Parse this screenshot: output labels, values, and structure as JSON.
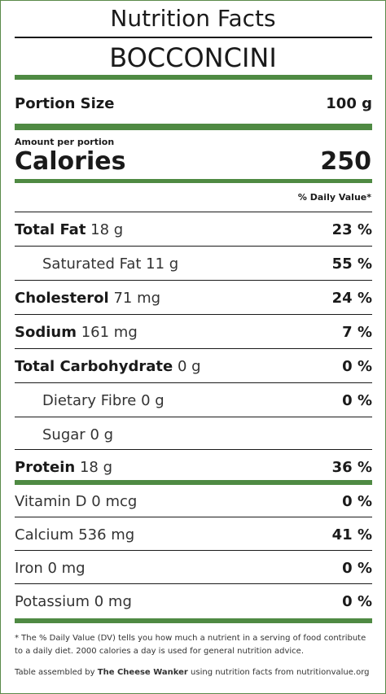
{
  "header": {
    "title": "Nutrition Facts",
    "product": "BOCCONCINI"
  },
  "portion": {
    "label": "Portion Size",
    "value": "100 g"
  },
  "calories": {
    "amount_per_portion": "Amount per portion",
    "label": "Calories",
    "value": "250"
  },
  "daily_value_header": "% Daily Value*",
  "nutrients": [
    {
      "name": "Total Fat",
      "amount": "18 g",
      "dv": "23 %"
    },
    {
      "name": "Saturated Fat",
      "amount": "11 g",
      "dv": "55 %"
    },
    {
      "name": "Cholesterol",
      "amount": "71 mg",
      "dv": "24 %"
    },
    {
      "name": "Sodium",
      "amount": "161 mg",
      "dv": "7 %"
    },
    {
      "name": "Total Carbohydrate",
      "amount": "0 g",
      "dv": "0 %"
    },
    {
      "name": "Dietary Fibre",
      "amount": "0 g",
      "dv": "0 %"
    },
    {
      "name": "Sugar",
      "amount": "0 g",
      "dv": ""
    },
    {
      "name": "Protein",
      "amount": "18 g",
      "dv": "36 %"
    }
  ],
  "vitamins": [
    {
      "name": "Vitamin D",
      "amount": "0 mcg",
      "dv": "0 %"
    },
    {
      "name": "Calcium",
      "amount": "536 mg",
      "dv": "41 %"
    },
    {
      "name": "Iron",
      "amount": "0 mg",
      "dv": "0 %"
    },
    {
      "name": "Potassium",
      "amount": "0 mg",
      "dv": "0 %"
    }
  ],
  "footer": {
    "note": "* The % Daily Value (DV) tells you how much a nutrient in a serving of food contribute to a daily diet. 2000 calories a day is used for general nutrition advice.",
    "credit_prefix": "Table assembled by",
    "credit_brand": "The Cheese Wanker",
    "credit_suffix": "using nutrition facts from nutritionvalue.org"
  },
  "colors": {
    "accent_green": "#4f8a43",
    "border_green": "#5a8a4a",
    "text": "#1a1a1a"
  }
}
